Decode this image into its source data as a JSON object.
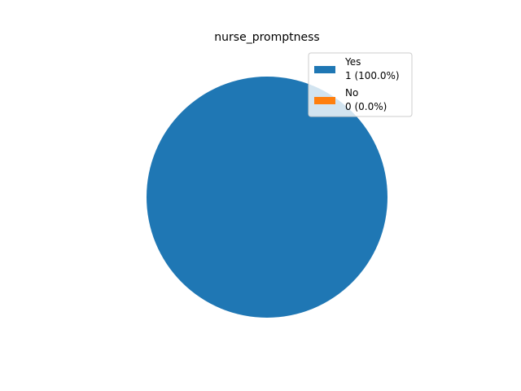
{
  "chart_data": {
    "type": "pie",
    "title": "nurse_promptness",
    "slices": [
      {
        "label": "Yes",
        "value": 1,
        "percent": "100.0%",
        "color": "#1f77b4",
        "legend_value": "1 (100.0%)"
      },
      {
        "label": "No",
        "value": 0,
        "percent": "0.0%",
        "color": "#ff7f0e",
        "legend_value": "0 (0.0%)"
      }
    ],
    "legend_placement": "top-right"
  }
}
